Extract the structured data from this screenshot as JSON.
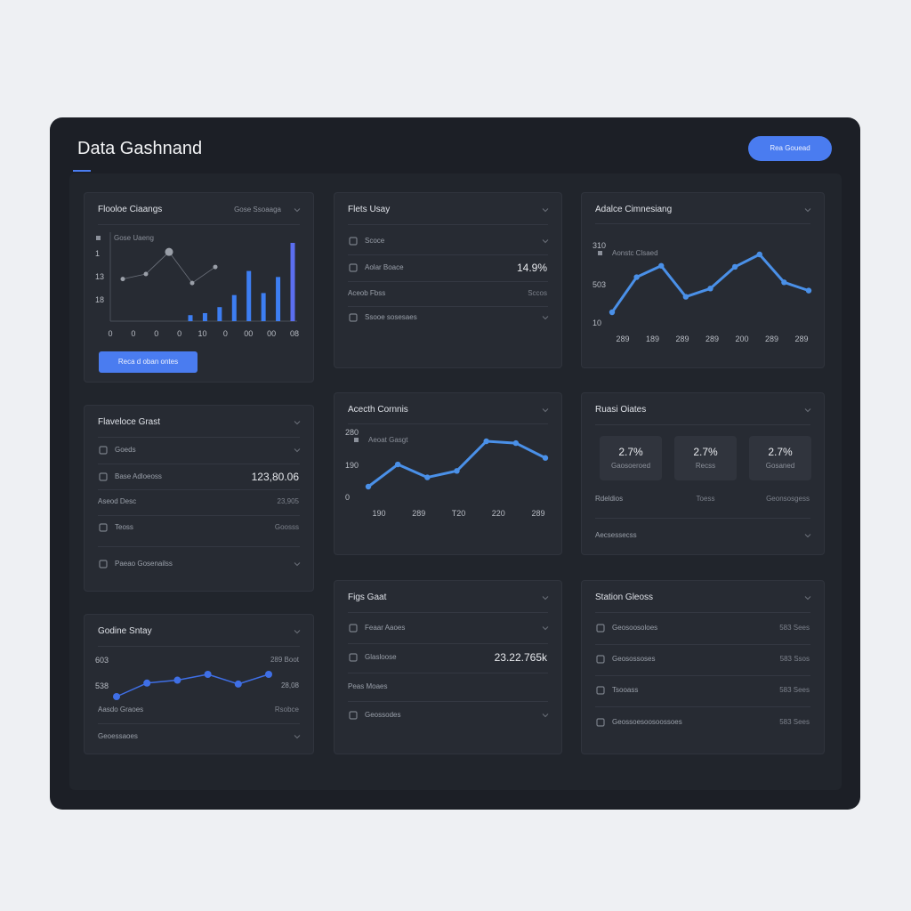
{
  "header": {
    "title": "Data Gashnand",
    "button": "Rea Gouead"
  },
  "panels": [
    {
      "title": "Flooloe Ciaangs",
      "aside": "Gose Ssoaaga",
      "chart": {
        "type": "bar",
        "legend": "Gose Uaeng",
        "ylabels": [
          "1",
          "13",
          "18"
        ],
        "xlabels": [
          "0",
          "0",
          "0",
          "0",
          "10",
          "0",
          "00",
          "00",
          "08"
        ],
        "values": [
          6,
          8,
          14,
          26,
          50,
          28,
          44,
          78
        ],
        "dots": [
          42,
          47,
          69,
          38,
          54
        ]
      },
      "button": "Reca d oban ontes"
    },
    {
      "title": "Flets Usay",
      "rows": [
        {
          "label": "Scoce"
        },
        {
          "label": "Aolar Boace",
          "value": "14.9%"
        },
        {
          "label": "Aceob Fbss",
          "value": "Sccos"
        },
        {
          "label": "Ssooe sosesaes"
        }
      ]
    },
    {
      "title": "Adalce Cimnesiang",
      "chart": {
        "type": "line",
        "legend": "Aonstc Clsaed",
        "ylabels": [
          "310",
          "503",
          "10"
        ],
        "xlabels": [
          "289",
          "189",
          "289",
          "289",
          "200",
          "289",
          "289"
        ],
        "values": [
          13,
          47,
          58,
          28,
          36,
          57,
          69,
          42,
          34
        ]
      }
    },
    {
      "title": "Flaveloce Grast",
      "rows": [
        {
          "label": "Goeds"
        },
        {
          "label": "Base Adloeoss",
          "value": "123,80.06"
        },
        {
          "label": "Aseod Desc",
          "value": "23,905"
        },
        {
          "label": "Teoss",
          "value": "Goosss"
        },
        {
          "label": "Paeao Gosenailss"
        }
      ]
    },
    {
      "title": "Acecth Cornnis",
      "chart": {
        "type": "line",
        "legend": "Aeoat Gasgt",
        "ylabels": [
          "280",
          "190",
          "0"
        ],
        "xlabels": [
          "190",
          "289",
          "T20",
          "220",
          "289"
        ],
        "values": [
          5,
          29,
          15,
          22,
          54,
          52,
          36
        ]
      }
    },
    {
      "title": "Ruasi Oiates",
      "stats": [
        {
          "value": "2.7%",
          "label": "Gaosoeroed"
        },
        {
          "value": "2.7%",
          "label": "Recss"
        },
        {
          "value": "2.7%",
          "label": "Gosaned"
        }
      ],
      "rows": [
        {
          "label": "Rdeldios",
          "middle": "Toess",
          "value": "Geonsosgess"
        },
        {
          "label": "Aecsessecss"
        }
      ]
    },
    {
      "title": "Godine Sntay",
      "chart": {
        "type": "line",
        "ylabels": [
          "603",
          "538"
        ],
        "rlabels": [
          "289 Boot",
          "28,08"
        ],
        "values": [
          0,
          14,
          17,
          23,
          13,
          23
        ]
      },
      "rows": [
        {
          "label": "Aasdo Graoes",
          "value": "Rsobce"
        },
        {
          "label": "Geoessaoes"
        }
      ]
    },
    {
      "title": "Figs Gaat",
      "rows": [
        {
          "label": "Feaar Aaoes"
        },
        {
          "label": "Glasloose",
          "value": "23.22.765k"
        },
        {
          "label": "Peas Moaes"
        },
        {
          "label": "Geossodes"
        }
      ]
    },
    {
      "title": "Station Gleoss",
      "rows": [
        {
          "label": "Geosoosoloes",
          "value": "583 Sees"
        },
        {
          "label": "Geosossoses",
          "value": "583 Ssos"
        },
        {
          "label": "Tsooass",
          "value": "583 Sees"
        },
        {
          "label": "Geossoesoosoossoes",
          "value": "583 Sees"
        }
      ]
    }
  ]
}
